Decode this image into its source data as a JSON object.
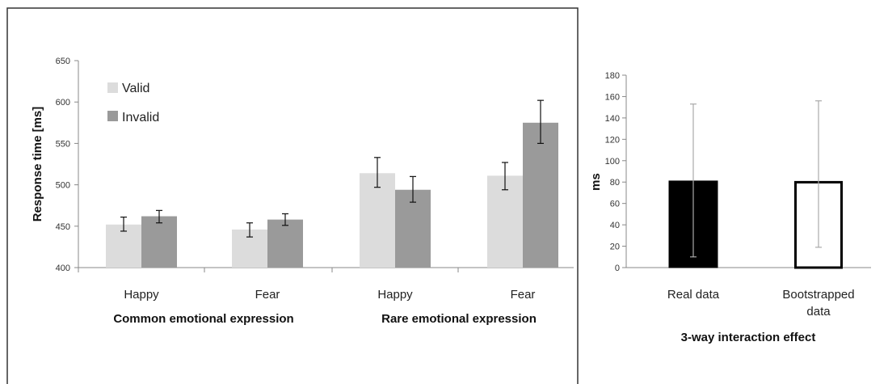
{
  "chart_data": [
    {
      "type": "bar",
      "ylabel": "Response time [ms]",
      "ylim": [
        400,
        650
      ],
      "yticks": [
        400,
        450,
        500,
        550,
        600,
        650
      ],
      "grid": false,
      "legend_position": "top-left",
      "colors": {
        "Valid": "#dcdcdc",
        "Invalid": "#9a9a9a"
      },
      "groups": [
        {
          "label": "Common emotional expression",
          "categories": [
            "Happy",
            "Fear"
          ]
        },
        {
          "label": "Rare emotional expression",
          "categories": [
            "Happy",
            "Fear"
          ]
        }
      ],
      "series": [
        {
          "name": "Valid",
          "values": [
            452,
            446,
            514,
            511
          ],
          "error_low": [
            444,
            437,
            497,
            494
          ],
          "error_high": [
            461,
            454,
            533,
            527
          ]
        },
        {
          "name": "Invalid",
          "values": [
            462,
            458,
            494,
            575
          ],
          "error_low": [
            454,
            451,
            479,
            550
          ],
          "error_high": [
            469,
            465,
            510,
            602
          ]
        }
      ]
    },
    {
      "type": "bar",
      "ylabel": "ms",
      "xlabel": "3-way interaction effect",
      "ylim": [
        0,
        180
      ],
      "yticks": [
        0,
        20,
        40,
        60,
        80,
        100,
        120,
        140,
        160,
        180
      ],
      "grid": false,
      "categories": [
        [
          "Real data"
        ],
        [
          "Bootstrapped",
          "data"
        ]
      ],
      "values": [
        81,
        81
      ],
      "error_low": [
        10,
        19
      ],
      "error_high": [
        153,
        156
      ],
      "fills": [
        "#000000",
        "#ffffff"
      ]
    }
  ]
}
